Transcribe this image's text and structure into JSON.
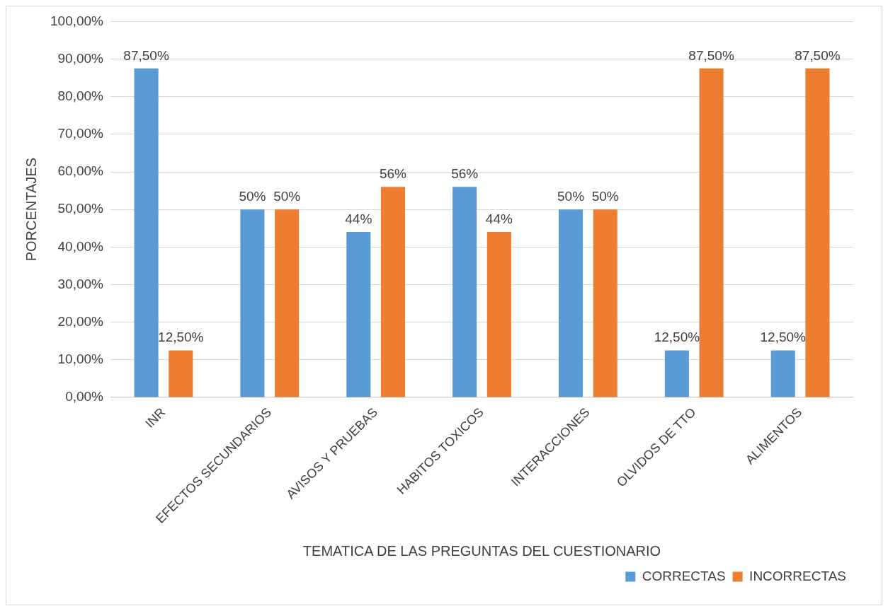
{
  "chart_data": {
    "type": "bar",
    "xlabel": "TEMATICA DE LAS PREGUNTAS DEL CUESTIONARIO",
    "ylabel": "PORCENTAJES",
    "categories": [
      "INR",
      "EFECTOS SECUNDARIOS",
      "AVISOS Y PRUEBAS",
      "HABITOS TOXICOS",
      "INTERACCIONES",
      "OLVIDOS DE TTO",
      "ALIMENTOS"
    ],
    "series": [
      {
        "name": "CORRECTAS",
        "color": "#5b9bd5",
        "values": [
          87.5,
          50,
          44,
          56,
          50,
          12.5,
          12.5
        ],
        "value_labels": [
          "87,50%",
          "50%",
          "44%",
          "56%",
          "50%",
          "12,50%",
          "12,50%"
        ]
      },
      {
        "name": "INCORRECTAS",
        "color": "#ed7d31",
        "values": [
          12.5,
          50,
          56,
          44,
          50,
          87.5,
          87.5
        ],
        "value_labels": [
          "12,50%",
          "50%",
          "56%",
          "44%",
          "50%",
          "87,50%",
          "87,50%"
        ]
      }
    ],
    "ylim": [
      0,
      100
    ],
    "yticks": [
      {
        "value": 0,
        "label": "0,00%"
      },
      {
        "value": 10,
        "label": "10,00%"
      },
      {
        "value": 20,
        "label": "20,00%"
      },
      {
        "value": 30,
        "label": "30,00%"
      },
      {
        "value": 40,
        "label": "40,00%"
      },
      {
        "value": 50,
        "label": "50,00%"
      },
      {
        "value": 60,
        "label": "60,00%"
      },
      {
        "value": 70,
        "label": "70,00%"
      },
      {
        "value": 80,
        "label": "80,00%"
      },
      {
        "value": 90,
        "label": "90,00%"
      },
      {
        "value": 100,
        "label": "100,00%"
      }
    ],
    "grid": "y",
    "legend": "bottom right"
  }
}
